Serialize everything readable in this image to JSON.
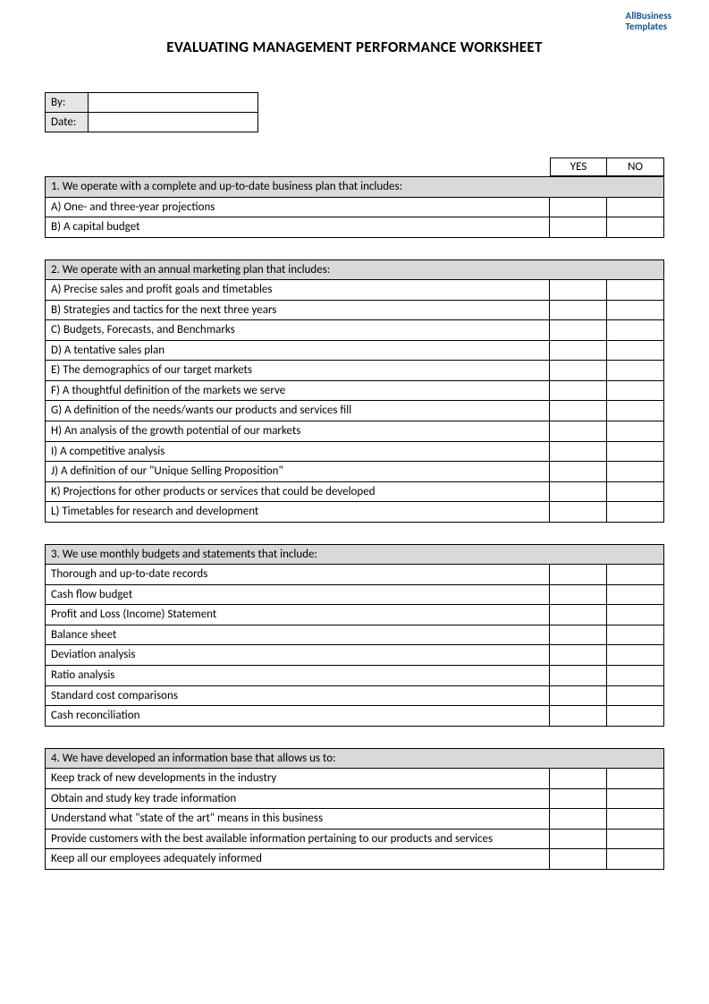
{
  "watermark": {
    "line1": "AllBusiness",
    "line2": "Templates"
  },
  "title": "EVALUATING MANAGEMENT PERFORMANCE WORKSHEET",
  "meta": {
    "byLabel": "By:",
    "byValue": "",
    "dateLabel": "Date:",
    "dateValue": ""
  },
  "columns": {
    "yes": "YES",
    "no": "NO"
  },
  "sections": [
    {
      "title": "1. We operate with a complete and up-to-date business plan that includes:",
      "items": [
        "A) One- and three-year projections",
        "B) A capital budget"
      ]
    },
    {
      "title": "2.  We operate with an annual marketing plan that includes:",
      "items": [
        "A) Precise sales and profit goals and timetables",
        "B) Strategies and tactics for the next three years",
        "C) Budgets, Forecasts, and Benchmarks",
        "D) A tentative sales plan",
        "E) The demographics of our target markets",
        "F) A thoughtful definition of the markets we serve",
        "G) A definition of the needs/wants our products and services fill",
        "H) An analysis of the growth potential of our markets",
        "I) A competitive analysis",
        "J) A definition of our \"Unique Selling Proposition\"",
        "K) Projections for other products or services that could be developed",
        "L) Timetables for research and development"
      ]
    },
    {
      "title": "3.  We use monthly budgets and statements that include:",
      "items": [
        "Thorough and up-to-date records",
        "Cash flow budget",
        "Profit and Loss (Income) Statement",
        "Balance sheet",
        "Deviation analysis",
        "Ratio analysis",
        "Standard cost comparisons",
        "Cash reconciliation"
      ]
    },
    {
      "title": "4.  We have developed an information base that allows us to:",
      "items": [
        "Keep track of new developments in the industry",
        "Obtain and study key trade information",
        "Understand what \"state of the art\" means in this business",
        "Provide customers with the best available information pertaining to our products and services",
        "Keep all our employees adequately informed"
      ]
    }
  ]
}
